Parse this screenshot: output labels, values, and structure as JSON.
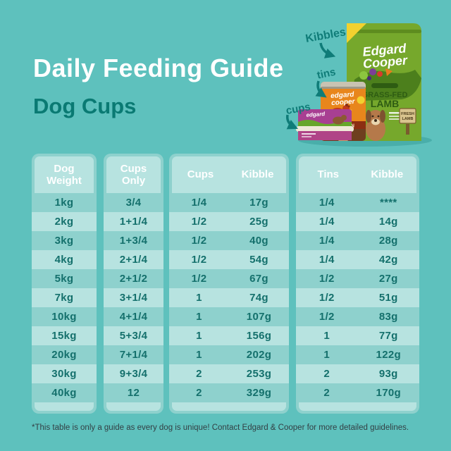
{
  "page": {
    "title": "Daily Feeding Guide",
    "subtitle": "Dog Cups",
    "footnote": "*This table is only a guide as every dog is unique! Contact Edgard & Cooper for more detailed guidelines."
  },
  "annotations": {
    "kibbles": "Kibbles",
    "tins": "tins",
    "cups": "cups"
  },
  "product": {
    "brand_line1": "Edgard",
    "brand_line2": "Cooper",
    "bag_flavor_line1": "GRASS-FED",
    "bag_flavor_line2": "LAMB",
    "tin_brand_line1": "edgard",
    "tin_brand_line2": "cooper",
    "tin_flavor": "CHICKEN",
    "cup_brand_line1": "edgard",
    "cup_brand_line2": "cooper",
    "sign_line1": "FRESH",
    "sign_line2": "LAMB"
  },
  "table": {
    "panels": [
      {
        "id": "dog-weight",
        "headers": [
          "Dog\nWeight"
        ]
      },
      {
        "id": "cups-only",
        "headers": [
          "Cups\nOnly"
        ]
      },
      {
        "id": "cups-kibble",
        "headers": [
          "Cups",
          "Kibble"
        ]
      },
      {
        "id": "tins-kibble",
        "headers": [
          "Tins",
          "Kibble"
        ]
      }
    ]
  },
  "chart_data": {
    "type": "table",
    "title": "Daily Feeding Guide — Dog Cups",
    "columns": [
      "Dog Weight",
      "Cups Only",
      "Cups",
      "Kibble (with cups)",
      "Tins",
      "Kibble (with tins)"
    ],
    "rows": [
      [
        "1kg",
        "3/4",
        "1/4",
        "17g",
        "1/4",
        "****"
      ],
      [
        "2kg",
        "1+1/4",
        "1/2",
        "25g",
        "1/4",
        "14g"
      ],
      [
        "3kg",
        "1+3/4",
        "1/2",
        "40g",
        "1/4",
        "28g"
      ],
      [
        "4kg",
        "2+1/4",
        "1/2",
        "54g",
        "1/4",
        "42g"
      ],
      [
        "5kg",
        "2+1/2",
        "1/2",
        "67g",
        "1/2",
        "27g"
      ],
      [
        "7kg",
        "3+1/4",
        "1",
        "74g",
        "1/2",
        "51g"
      ],
      [
        "10kg",
        "4+1/4",
        "1",
        "107g",
        "1/2",
        "83g"
      ],
      [
        "15kg",
        "5+3/4",
        "1",
        "156g",
        "1",
        "77g"
      ],
      [
        "20kg",
        "7+1/4",
        "1",
        "202g",
        "1",
        "122g"
      ],
      [
        "30kg",
        "9+3/4",
        "2",
        "253g",
        "2",
        "93g"
      ],
      [
        "40kg",
        "12",
        "2",
        "329g",
        "2",
        "170g"
      ]
    ]
  },
  "colors": {
    "background": "#5ec1bd",
    "panel": "#8ed1cd",
    "stripe": "#b7e3e0",
    "header_text": "#ffffff",
    "cell_text": "#14706c",
    "title_text": "#ffffff",
    "subtitle_text": "#0a7a73",
    "annotation_text": "#0f7c78",
    "bag_green": "#76a82c",
    "tin_orange": "#e8861c",
    "cup_purple": "#a83f92"
  }
}
